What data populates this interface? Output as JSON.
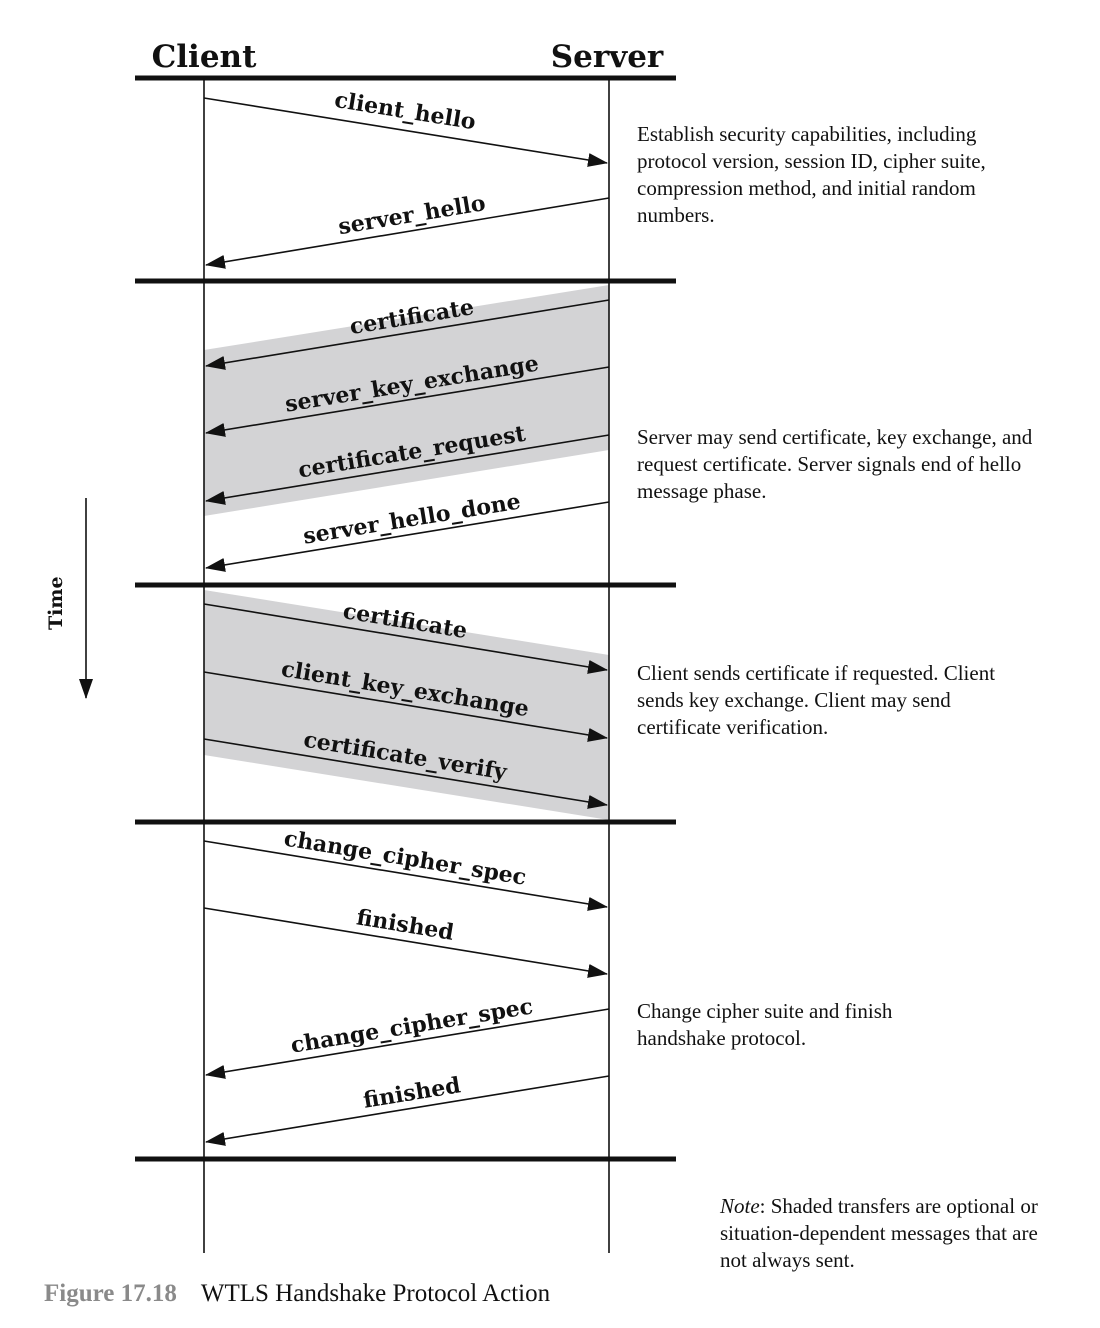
{
  "headers": {
    "client": "Client",
    "server": "Server"
  },
  "time_label": "Time",
  "phases": [
    {
      "description": "Establish security capabilities, including protocol version, session ID, cipher suite, compression method, and initial random numbers.",
      "messages": [
        {
          "label": "client_hello",
          "direction": "client-to-server",
          "optional": false
        },
        {
          "label": "server_hello",
          "direction": "server-to-client",
          "optional": false
        }
      ]
    },
    {
      "description": "Server may send certificate, key exchange, and request certificate. Server signals end of hello message phase.",
      "messages": [
        {
          "label": "certificate",
          "direction": "server-to-client",
          "optional": true
        },
        {
          "label": "server_key_exchange",
          "direction": "server-to-client",
          "optional": true
        },
        {
          "label": "certificate_request",
          "direction": "server-to-client",
          "optional": true
        },
        {
          "label": "server_hello_done",
          "direction": "server-to-client",
          "optional": false
        }
      ]
    },
    {
      "description": "Client sends certificate if requested. Client sends key exchange. Client may send certificate verification.",
      "messages": [
        {
          "label": "certificate",
          "direction": "client-to-server",
          "optional": true
        },
        {
          "label": "client_key_exchange",
          "direction": "client-to-server",
          "optional": true
        },
        {
          "label": "certificate_verify",
          "direction": "client-to-server",
          "optional": true
        }
      ]
    },
    {
      "description": "Change cipher suite and finish handshake protocol.",
      "messages": [
        {
          "label": "change_cipher_spec",
          "direction": "client-to-server",
          "optional": false
        },
        {
          "label": "finished",
          "direction": "client-to-server",
          "optional": false
        },
        {
          "label": "change_cipher_spec",
          "direction": "server-to-client",
          "optional": false
        },
        {
          "label": "finished",
          "direction": "server-to-client",
          "optional": false
        }
      ]
    }
  ],
  "note": {
    "label": "Note",
    "text": ": Shaded transfers are optional or situation-dependent messages that are not always sent."
  },
  "caption": {
    "number": "Figure 17.18",
    "title": "WTLS Handshake Protocol Action"
  },
  "colors": {
    "shade": "#d3d3d5",
    "ink": "#111111",
    "figure_number": "#8a8a8a"
  }
}
